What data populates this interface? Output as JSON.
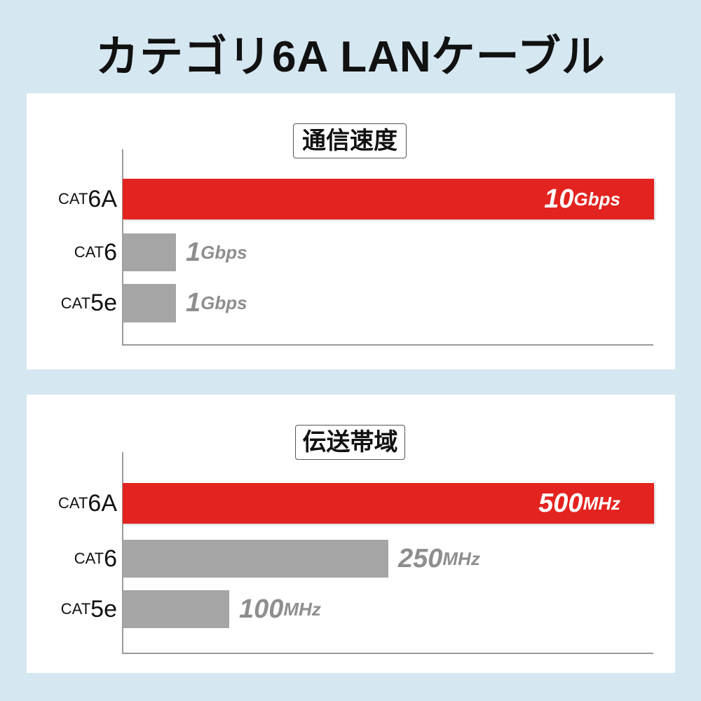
{
  "title": "カテゴリ6A LANケーブル",
  "chart_data": [
    {
      "type": "bar",
      "orientation": "horizontal",
      "title": "通信速度",
      "xlim": [
        0,
        10
      ],
      "categories": [
        {
          "prefix": "CAT",
          "suffix": "6A"
        },
        {
          "prefix": "CAT",
          "suffix": "6"
        },
        {
          "prefix": "CAT",
          "suffix": "5e"
        }
      ],
      "values": [
        10,
        1,
        1
      ],
      "labels": [
        {
          "num": "10",
          "unit": "Gbps"
        },
        {
          "num": "1",
          "unit": "Gbps"
        },
        {
          "num": "1",
          "unit": "Gbps"
        }
      ],
      "highlight_color": "#e3231f",
      "bar_color": "#a5a5a5"
    },
    {
      "type": "bar",
      "orientation": "horizontal",
      "title": "伝送帯域",
      "xlim": [
        0,
        500
      ],
      "categories": [
        {
          "prefix": "CAT",
          "suffix": "6A"
        },
        {
          "prefix": "CAT",
          "suffix": "6"
        },
        {
          "prefix": "CAT",
          "suffix": "5e"
        }
      ],
      "values": [
        500,
        250,
        100
      ],
      "labels": [
        {
          "num": "500",
          "unit": "MHz"
        },
        {
          "num": "250",
          "unit": "MHz"
        },
        {
          "num": "100",
          "unit": "MHz"
        }
      ],
      "highlight_color": "#e3231f",
      "bar_color": "#a5a5a5"
    }
  ]
}
